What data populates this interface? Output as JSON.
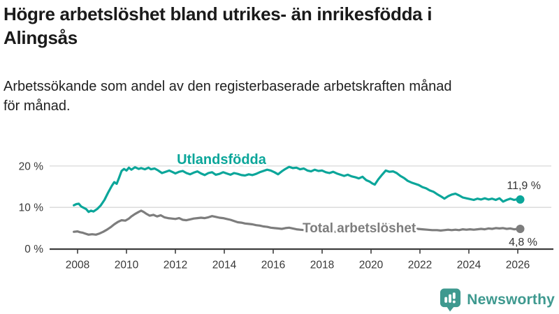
{
  "header": {
    "title_lines": [
      "Högre arbetslöshet bland utrikes- än inrikesfödda i",
      "Alingsås"
    ],
    "subtitle_lines": [
      "Arbetssökande som andel av den registerbaserade arbetskraften månad",
      "för månad."
    ]
  },
  "footer": {
    "brand": "Newsworthy"
  },
  "colors": {
    "series_foreign_born": "#0ba69a",
    "series_total": "#7d7d7d",
    "grid": "#d8d8d8",
    "axis": "#3d3d3d",
    "tick_text": "#383838",
    "annotation_text": "#333333",
    "brand_teal": "#3e998f",
    "title_text": "#1a1a1a"
  },
  "chart_data": {
    "type": "line",
    "unit": "%",
    "x_tick_labels": [
      "2008",
      "2010",
      "2012",
      "2014",
      "2016",
      "2018",
      "2020",
      "2022",
      "2024",
      "2026"
    ],
    "x_tick_years": [
      2008,
      2010,
      2012,
      2014,
      2016,
      2018,
      2020,
      2022,
      2024,
      2026
    ],
    "y_ticks": [
      0,
      10,
      20
    ],
    "y_tick_labels": [
      "0 %",
      "10 %",
      "20 %"
    ],
    "ylim": [
      0,
      24
    ],
    "xlim": [
      2007.6,
      2026.6
    ],
    "grid": "horizontal-only",
    "legend_position": "inline-labels",
    "series": [
      {
        "name": "Utlandsfödda",
        "slug": "utlandsfodda",
        "color": "#0ba69a",
        "end_label": "11,9 %",
        "end_value": 11.9,
        "points": [
          [
            2007.85,
            10.5
          ],
          [
            2007.95,
            10.8
          ],
          [
            2008.05,
            10.9
          ],
          [
            2008.15,
            10.2
          ],
          [
            2008.25,
            9.9
          ],
          [
            2008.35,
            9.6
          ],
          [
            2008.45,
            8.9
          ],
          [
            2008.55,
            9.2
          ],
          [
            2008.65,
            9.0
          ],
          [
            2008.8,
            9.6
          ],
          [
            2008.95,
            10.5
          ],
          [
            2009.1,
            11.8
          ],
          [
            2009.25,
            13.6
          ],
          [
            2009.4,
            15.2
          ],
          [
            2009.5,
            16.1
          ],
          [
            2009.6,
            15.7
          ],
          [
            2009.7,
            17.2
          ],
          [
            2009.8,
            18.8
          ],
          [
            2009.9,
            19.3
          ],
          [
            2010.0,
            18.9
          ],
          [
            2010.1,
            19.6
          ],
          [
            2010.2,
            19.1
          ],
          [
            2010.35,
            19.7
          ],
          [
            2010.5,
            19.3
          ],
          [
            2010.6,
            19.5
          ],
          [
            2010.75,
            19.2
          ],
          [
            2010.9,
            19.6
          ],
          [
            2011.0,
            19.2
          ],
          [
            2011.15,
            19.4
          ],
          [
            2011.3,
            18.9
          ],
          [
            2011.45,
            18.3
          ],
          [
            2011.6,
            18.6
          ],
          [
            2011.75,
            18.9
          ],
          [
            2011.9,
            18.5
          ],
          [
            2012.0,
            18.2
          ],
          [
            2012.15,
            18.6
          ],
          [
            2012.3,
            18.8
          ],
          [
            2012.45,
            18.3
          ],
          [
            2012.6,
            18.0
          ],
          [
            2012.75,
            18.4
          ],
          [
            2012.9,
            18.7
          ],
          [
            2013.05,
            18.2
          ],
          [
            2013.2,
            17.8
          ],
          [
            2013.35,
            18.3
          ],
          [
            2013.5,
            18.5
          ],
          [
            2013.65,
            17.9
          ],
          [
            2013.8,
            18.1
          ],
          [
            2013.95,
            18.5
          ],
          [
            2014.1,
            18.2
          ],
          [
            2014.25,
            17.9
          ],
          [
            2014.4,
            18.3
          ],
          [
            2014.55,
            18.1
          ],
          [
            2014.7,
            17.8
          ],
          [
            2014.85,
            17.7
          ],
          [
            2015.0,
            18.0
          ],
          [
            2015.15,
            17.8
          ],
          [
            2015.3,
            18.1
          ],
          [
            2015.45,
            18.5
          ],
          [
            2015.6,
            18.8
          ],
          [
            2015.75,
            19.1
          ],
          [
            2015.9,
            18.9
          ],
          [
            2016.05,
            18.5
          ],
          [
            2016.2,
            18.0
          ],
          [
            2016.35,
            18.7
          ],
          [
            2016.5,
            19.3
          ],
          [
            2016.65,
            19.8
          ],
          [
            2016.8,
            19.5
          ],
          [
            2016.95,
            19.6
          ],
          [
            2017.1,
            19.2
          ],
          [
            2017.25,
            19.4
          ],
          [
            2017.4,
            18.9
          ],
          [
            2017.55,
            18.7
          ],
          [
            2017.7,
            19.1
          ],
          [
            2017.85,
            18.8
          ],
          [
            2018.0,
            18.9
          ],
          [
            2018.15,
            18.5
          ],
          [
            2018.3,
            18.3
          ],
          [
            2018.45,
            18.6
          ],
          [
            2018.6,
            18.2
          ],
          [
            2018.75,
            17.9
          ],
          [
            2018.9,
            17.6
          ],
          [
            2019.05,
            17.9
          ],
          [
            2019.2,
            17.5
          ],
          [
            2019.35,
            17.3
          ],
          [
            2019.5,
            17.0
          ],
          [
            2019.65,
            17.4
          ],
          [
            2019.8,
            16.6
          ],
          [
            2019.95,
            16.2
          ],
          [
            2020.05,
            15.8
          ],
          [
            2020.15,
            15.5
          ],
          [
            2020.3,
            16.8
          ],
          [
            2020.45,
            17.9
          ],
          [
            2020.6,
            18.9
          ],
          [
            2020.75,
            18.6
          ],
          [
            2020.9,
            18.7
          ],
          [
            2021.05,
            18.3
          ],
          [
            2021.2,
            17.6
          ],
          [
            2021.35,
            17.1
          ],
          [
            2021.5,
            16.4
          ],
          [
            2021.65,
            16.0
          ],
          [
            2021.8,
            15.7
          ],
          [
            2021.95,
            15.4
          ],
          [
            2022.1,
            14.9
          ],
          [
            2022.25,
            14.6
          ],
          [
            2022.4,
            14.1
          ],
          [
            2022.55,
            13.8
          ],
          [
            2022.7,
            13.2
          ],
          [
            2022.85,
            12.7
          ],
          [
            2023.0,
            12.1
          ],
          [
            2023.15,
            12.7
          ],
          [
            2023.3,
            13.1
          ],
          [
            2023.45,
            13.3
          ],
          [
            2023.6,
            12.9
          ],
          [
            2023.75,
            12.4
          ],
          [
            2023.9,
            12.2
          ],
          [
            2024.05,
            12.0
          ],
          [
            2024.2,
            11.8
          ],
          [
            2024.35,
            12.1
          ],
          [
            2024.5,
            11.9
          ],
          [
            2024.65,
            12.2
          ],
          [
            2024.8,
            11.9
          ],
          [
            2024.95,
            12.1
          ],
          [
            2025.1,
            11.8
          ],
          [
            2025.25,
            12.2
          ],
          [
            2025.4,
            11.4
          ],
          [
            2025.55,
            11.8
          ],
          [
            2025.7,
            12.1
          ],
          [
            2025.85,
            11.8
          ],
          [
            2026.0,
            12.0
          ],
          [
            2026.1,
            11.9
          ]
        ]
      },
      {
        "name": "Total arbetslöshet",
        "slug": "total-arbetsloshet",
        "color": "#7d7d7d",
        "end_label": "4,8 %",
        "end_value": 4.8,
        "points": [
          [
            2007.85,
            4.1
          ],
          [
            2008.0,
            4.2
          ],
          [
            2008.1,
            4.0
          ],
          [
            2008.2,
            3.9
          ],
          [
            2008.3,
            3.7
          ],
          [
            2008.45,
            3.4
          ],
          [
            2008.6,
            3.5
          ],
          [
            2008.75,
            3.4
          ],
          [
            2008.9,
            3.7
          ],
          [
            2009.05,
            4.1
          ],
          [
            2009.2,
            4.6
          ],
          [
            2009.35,
            5.2
          ],
          [
            2009.5,
            5.9
          ],
          [
            2009.65,
            6.5
          ],
          [
            2009.8,
            6.9
          ],
          [
            2009.95,
            6.8
          ],
          [
            2010.1,
            7.3
          ],
          [
            2010.2,
            7.8
          ],
          [
            2010.35,
            8.4
          ],
          [
            2010.5,
            8.9
          ],
          [
            2010.6,
            9.2
          ],
          [
            2010.7,
            8.9
          ],
          [
            2010.8,
            8.5
          ],
          [
            2010.95,
            8.0
          ],
          [
            2011.1,
            8.2
          ],
          [
            2011.25,
            7.8
          ],
          [
            2011.4,
            8.1
          ],
          [
            2011.55,
            7.6
          ],
          [
            2011.7,
            7.4
          ],
          [
            2011.85,
            7.3
          ],
          [
            2012.0,
            7.2
          ],
          [
            2012.15,
            7.4
          ],
          [
            2012.3,
            7.0
          ],
          [
            2012.45,
            6.9
          ],
          [
            2012.6,
            7.1
          ],
          [
            2012.75,
            7.3
          ],
          [
            2012.9,
            7.4
          ],
          [
            2013.05,
            7.5
          ],
          [
            2013.2,
            7.4
          ],
          [
            2013.35,
            7.6
          ],
          [
            2013.5,
            7.9
          ],
          [
            2013.65,
            7.7
          ],
          [
            2013.8,
            7.5
          ],
          [
            2013.95,
            7.4
          ],
          [
            2014.1,
            7.2
          ],
          [
            2014.25,
            7.0
          ],
          [
            2014.4,
            6.7
          ],
          [
            2014.55,
            6.4
          ],
          [
            2014.7,
            6.3
          ],
          [
            2014.85,
            6.1
          ],
          [
            2015.0,
            6.0
          ],
          [
            2015.15,
            5.9
          ],
          [
            2015.3,
            5.7
          ],
          [
            2015.45,
            5.6
          ],
          [
            2015.6,
            5.4
          ],
          [
            2015.75,
            5.3
          ],
          [
            2015.9,
            5.1
          ],
          [
            2016.05,
            5.0
          ],
          [
            2016.2,
            4.9
          ],
          [
            2016.35,
            4.8
          ],
          [
            2016.5,
            5.0
          ],
          [
            2016.65,
            5.1
          ],
          [
            2016.8,
            4.9
          ],
          [
            2016.95,
            4.7
          ],
          [
            2017.1,
            4.6
          ],
          [
            2017.3,
            4.5
          ],
          [
            2017.5,
            4.4
          ],
          [
            2017.7,
            4.3
          ],
          [
            2017.9,
            4.2
          ],
          [
            2018.1,
            4.1
          ],
          [
            2018.3,
            4.2
          ],
          [
            2018.5,
            4.1
          ],
          [
            2018.7,
            4.2
          ],
          [
            2018.9,
            4.3
          ],
          [
            2019.1,
            4.4
          ],
          [
            2019.3,
            4.5
          ],
          [
            2019.5,
            4.6
          ],
          [
            2019.7,
            4.7
          ],
          [
            2019.9,
            4.8
          ],
          [
            2020.1,
            5.1
          ],
          [
            2020.3,
            5.5
          ],
          [
            2020.5,
            5.8
          ],
          [
            2020.7,
            5.9
          ],
          [
            2020.9,
            5.8
          ],
          [
            2021.1,
            5.6
          ],
          [
            2021.3,
            5.4
          ],
          [
            2021.5,
            5.2
          ],
          [
            2021.7,
            5.0
          ],
          [
            2021.9,
            4.8
          ],
          [
            2022.1,
            4.7
          ],
          [
            2022.3,
            4.6
          ],
          [
            2022.5,
            4.5
          ],
          [
            2022.7,
            4.5
          ],
          [
            2022.85,
            4.4
          ],
          [
            2023.0,
            4.5
          ],
          [
            2023.15,
            4.6
          ],
          [
            2023.3,
            4.5
          ],
          [
            2023.45,
            4.6
          ],
          [
            2023.6,
            4.5
          ],
          [
            2023.75,
            4.7
          ],
          [
            2023.9,
            4.6
          ],
          [
            2024.05,
            4.7
          ],
          [
            2024.2,
            4.6
          ],
          [
            2024.35,
            4.7
          ],
          [
            2024.5,
            4.8
          ],
          [
            2024.65,
            4.7
          ],
          [
            2024.8,
            4.9
          ],
          [
            2024.95,
            4.8
          ],
          [
            2025.1,
            5.0
          ],
          [
            2025.25,
            4.9
          ],
          [
            2025.4,
            5.0
          ],
          [
            2025.55,
            4.8
          ],
          [
            2025.7,
            4.9
          ],
          [
            2025.85,
            4.7
          ],
          [
            2026.0,
            4.8
          ],
          [
            2026.1,
            4.8
          ]
        ]
      }
    ]
  }
}
